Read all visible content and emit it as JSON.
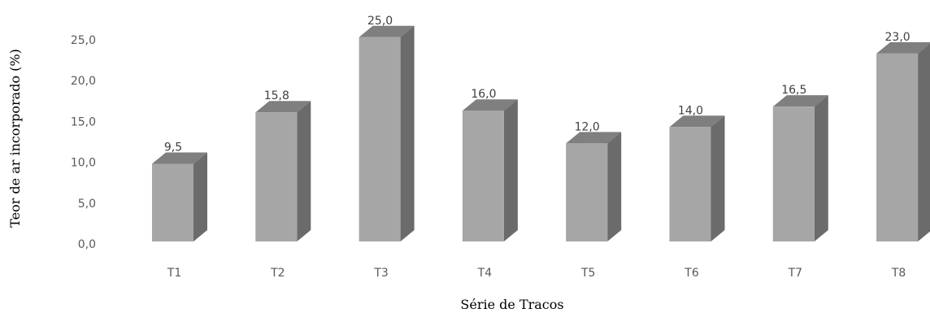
{
  "chart_data": {
    "type": "bar",
    "categories": [
      "T1",
      "T2",
      "T3",
      "T4",
      "T5",
      "T6",
      "T7",
      "T8"
    ],
    "values": [
      9.5,
      15.8,
      25.0,
      16.0,
      12.0,
      14.0,
      16.5,
      23.0
    ],
    "data_labels": [
      "9,5",
      "15,8",
      "25,0",
      "16,0",
      "12,0",
      "14,0",
      "16,5",
      "23,0"
    ],
    "y_tick_labels": [
      "0,0",
      "5,0",
      "10,0",
      "15,0",
      "20,0",
      "25,0"
    ],
    "y_ticks": [
      0,
      5,
      10,
      15,
      20,
      25
    ],
    "ylim": [
      0,
      25
    ],
    "xlabel": "Série de Tracos",
    "ylabel": "Teor de ar incorporado (%)",
    "title": "",
    "grid": false,
    "legend": "none",
    "style": "3d-column",
    "colors": {
      "front": "#a6a6a6",
      "top": "#7f7f7f",
      "side": "#6b6b6b"
    }
  }
}
